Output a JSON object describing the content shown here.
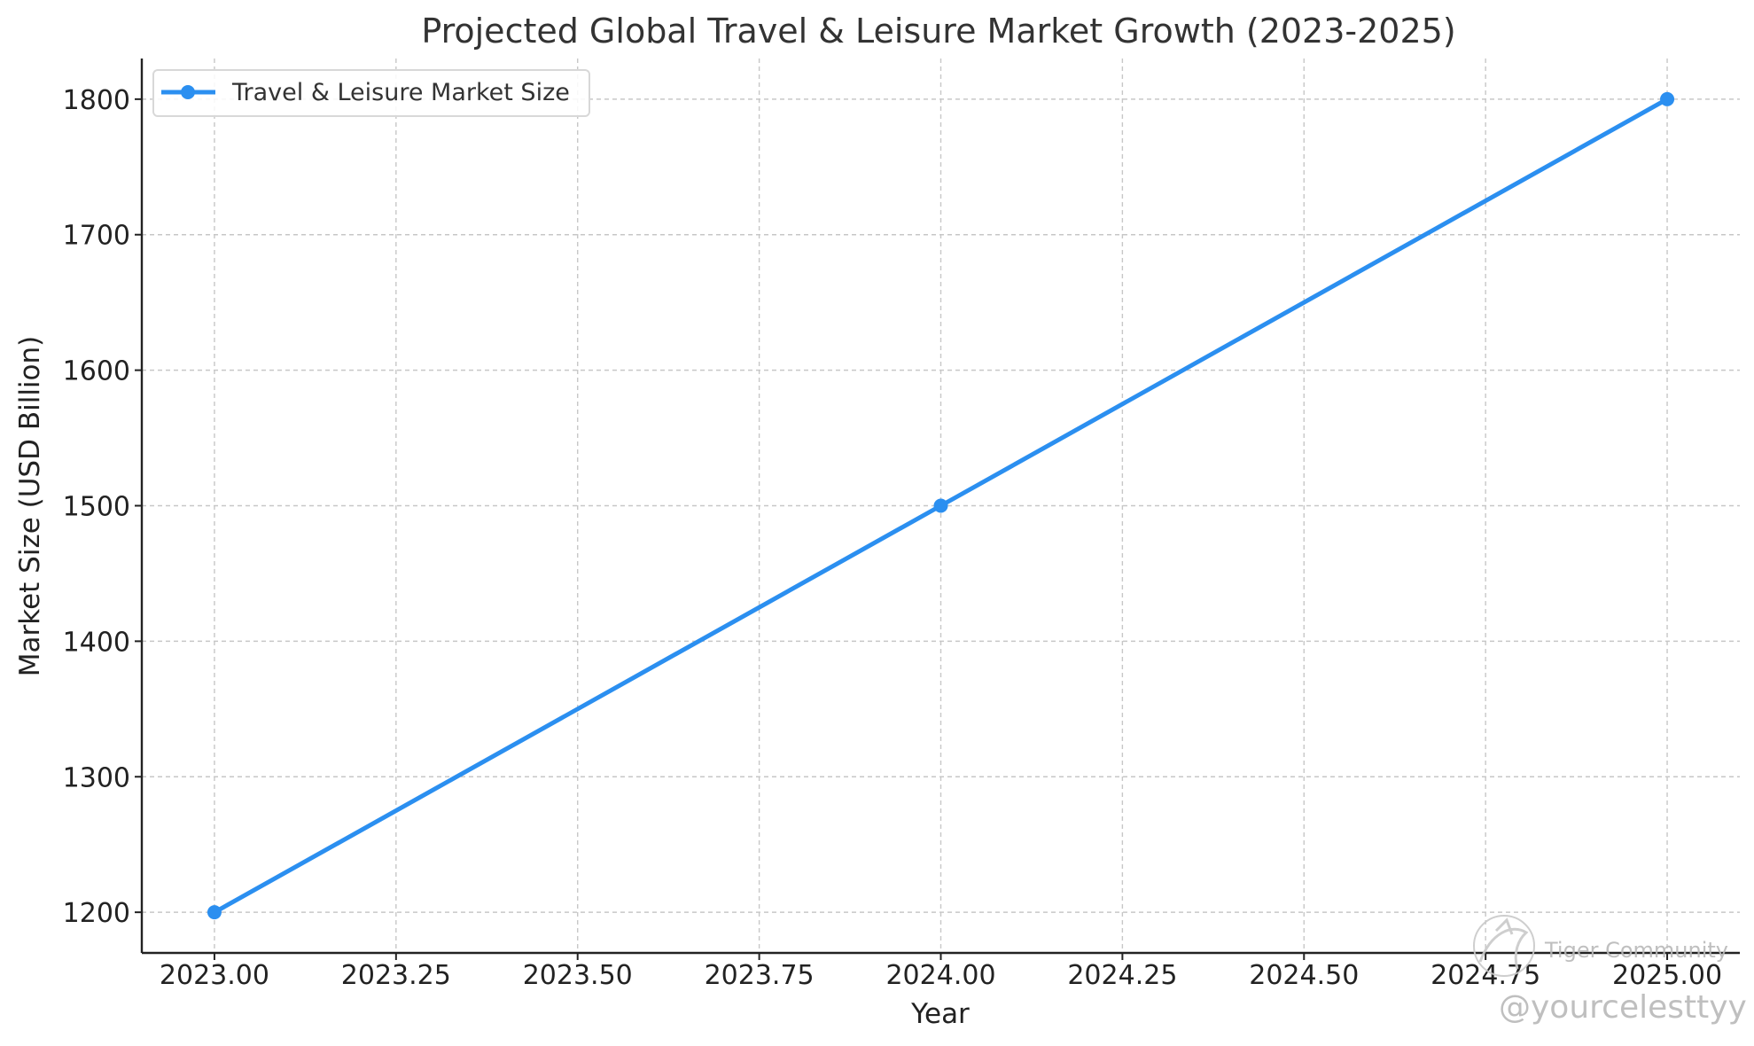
{
  "chart_data": {
    "type": "line",
    "title": "Projected Global Travel & Leisure Market Growth (2023-2025)",
    "xlabel": "Year",
    "ylabel": "Market Size (USD Billion)",
    "x": [
      2023,
      2024,
      2025
    ],
    "series": [
      {
        "name": "Travel & Leisure Market Size",
        "values": [
          1200,
          1500,
          1800
        ],
        "color": "#2b8ff0",
        "marker": "circle"
      }
    ],
    "xlim": [
      2022.9,
      2025.1
    ],
    "ylim": [
      1170,
      1830
    ],
    "x_ticks": [
      2023.0,
      2023.25,
      2023.5,
      2023.75,
      2024.0,
      2024.25,
      2024.5,
      2024.75,
      2025.0
    ],
    "x_tick_labels": [
      "2023.00",
      "2023.25",
      "2023.50",
      "2023.75",
      "2024.00",
      "2024.25",
      "2024.50",
      "2024.75",
      "2025.00"
    ],
    "y_ticks": [
      1200,
      1300,
      1400,
      1500,
      1600,
      1700,
      1800
    ],
    "y_tick_labels": [
      "1200",
      "1300",
      "1400",
      "1500",
      "1600",
      "1700",
      "1800"
    ],
    "grid": true,
    "grid_style": "dashed",
    "legend_position": "top-left"
  },
  "watermark": {
    "brand": "Tiger Community",
    "handle": "@yourcelesttyy",
    "icon": "tiger-logo-icon"
  }
}
